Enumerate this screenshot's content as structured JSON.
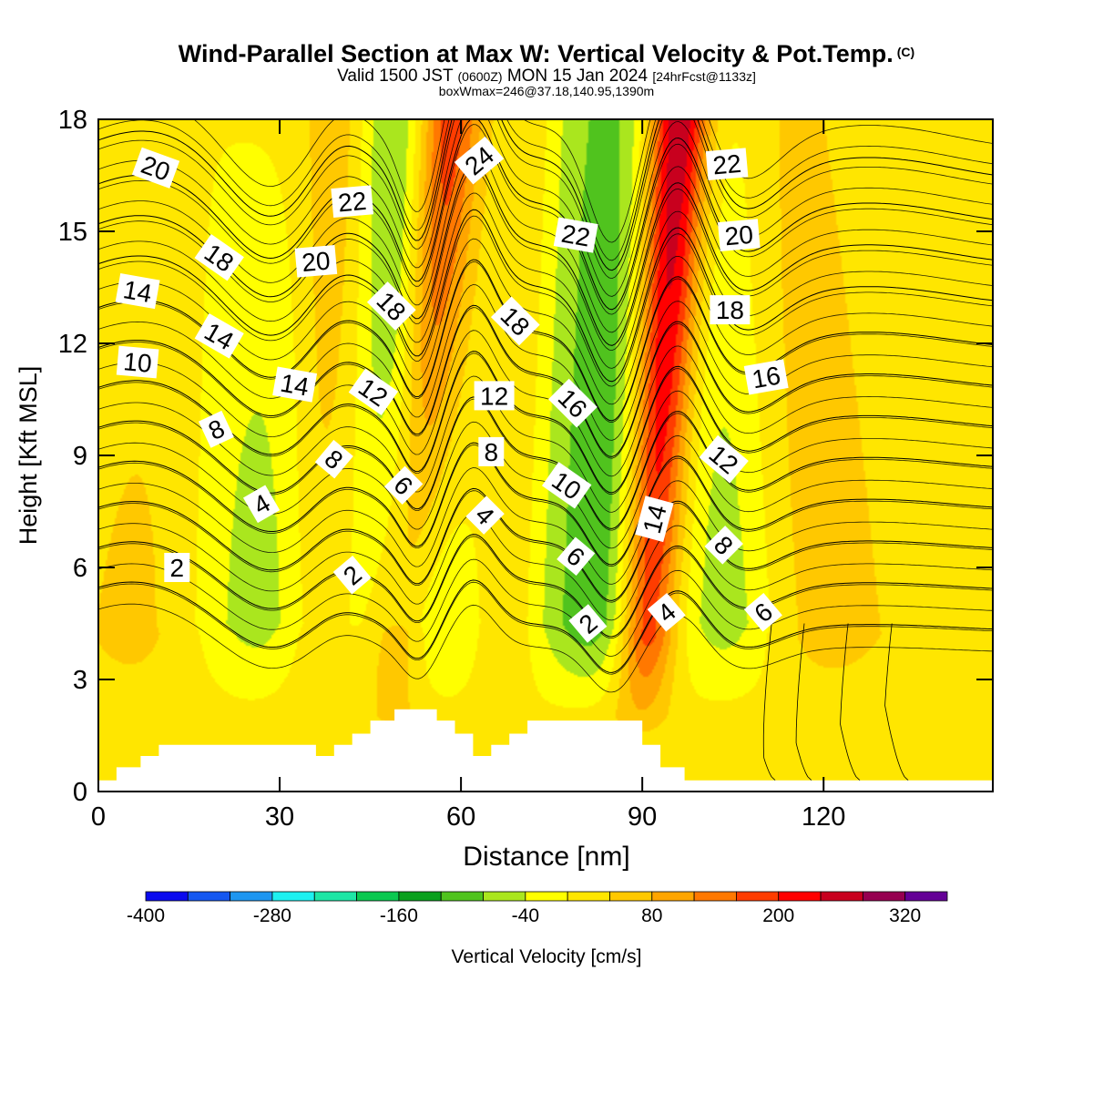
{
  "header": {
    "title": "Wind-Parallel Section at Max W: Vertical Velocity & Pot.Temp.",
    "title_mark": "(C)",
    "valid_a": "Valid 1500 JST",
    "valid_b": "(0600Z)",
    "valid_c": "MON 15 Jan 2024",
    "valid_d": "[24hrFcst@1133z]",
    "box_info": "boxWmax=246@37.18,140.95,1390m"
  },
  "chart_data": {
    "type": "heatmap",
    "title": "Wind-Parallel Section at Max W: Vertical Velocity & Pot.Temp.",
    "xlabel": "Distance [nm]",
    "ylabel": "Height [Kft MSL]",
    "xlim": [
      0,
      148
    ],
    "ylim": [
      0,
      18
    ],
    "x_ticks": [
      0,
      30,
      60,
      90,
      120
    ],
    "y_ticks": [
      0,
      3,
      6,
      9,
      12,
      15,
      18
    ],
    "colorbar": {
      "label": "Vertical Velocity [cm/s]",
      "tick_labels": [
        "-400",
        "-280",
        "-160",
        "-40",
        "80",
        "200",
        "320"
      ],
      "tick_values": [
        -400,
        -280,
        -160,
        -40,
        80,
        200,
        320
      ],
      "range": [
        -400,
        360
      ],
      "colors": [
        "#0a0aee",
        "#1457f0",
        "#1e96f0",
        "#1ef0f0",
        "#1ee6a5",
        "#0ac850",
        "#0aa01e",
        "#50c31e",
        "#aae61e",
        "#ffff00",
        "#ffe600",
        "#ffc800",
        "#ffa500",
        "#ff7800",
        "#ff3c00",
        "#ff0000",
        "#c8001e",
        "#960050",
        "#640096"
      ]
    },
    "terrain": [
      [
        0,
        0.3
      ],
      [
        3,
        0.3
      ],
      [
        3,
        0.65
      ],
      [
        7,
        0.65
      ],
      [
        7,
        0.95
      ],
      [
        10,
        0.95
      ],
      [
        10,
        1.25
      ],
      [
        36,
        1.25
      ],
      [
        36,
        0.95
      ],
      [
        39,
        0.95
      ],
      [
        39,
        1.25
      ],
      [
        42,
        1.25
      ],
      [
        42,
        1.55
      ],
      [
        45,
        1.55
      ],
      [
        45,
        1.9
      ],
      [
        49,
        1.9
      ],
      [
        49,
        2.2
      ],
      [
        56,
        2.2
      ],
      [
        56,
        1.9
      ],
      [
        59,
        1.9
      ],
      [
        59,
        1.55
      ],
      [
        62,
        1.55
      ],
      [
        62,
        0.95
      ],
      [
        65,
        0.95
      ],
      [
        65,
        1.25
      ],
      [
        68,
        1.25
      ],
      [
        68,
        1.55
      ],
      [
        71,
        1.55
      ],
      [
        71,
        1.9
      ],
      [
        90,
        1.9
      ],
      [
        90,
        1.25
      ],
      [
        93,
        1.25
      ],
      [
        93,
        0.65
      ],
      [
        97,
        0.65
      ],
      [
        97,
        0.3
      ],
      [
        148,
        0.3
      ]
    ],
    "updrafts": [
      {
        "x_base": 48,
        "x_top": 58,
        "width": 5.5,
        "w_max": 190
      },
      {
        "x_base": 89,
        "x_top": 96,
        "width": 5,
        "w_max": 300
      },
      {
        "x_base": 5,
        "x_top": 20,
        "width": 14,
        "w_max": 60
      },
      {
        "x_base": 34,
        "x_top": 40,
        "width": 6,
        "w_max": 70
      },
      {
        "x_base": 68,
        "x_top": 72,
        "width": 4,
        "w_max": 40
      },
      {
        "x_base": 123,
        "x_top": 108,
        "width": 16,
        "w_max": 55
      }
    ],
    "downdrafts": [
      {
        "x_base": 53,
        "x_top": 49,
        "width": 7,
        "w_min": -140
      },
      {
        "x_base": 83,
        "x_top": 85,
        "width": 11,
        "w_min": -140
      },
      {
        "x_base": 29,
        "x_top": 20,
        "width": 14,
        "w_min": -90
      },
      {
        "x_base": 105,
        "x_top": 104,
        "width": 8,
        "w_min": -90
      }
    ],
    "theta_contours": [
      {
        "label": "2",
        "base_height": 4.4
      },
      {
        "label": "4",
        "base_height": 5.5
      },
      {
        "label": "6",
        "base_height": 6.6
      },
      {
        "label": "8",
        "base_height": 7.7
      },
      {
        "label": "10",
        "base_height": 8.8
      },
      {
        "label": "12",
        "base_height": 9.9
      },
      {
        "label": "14",
        "base_height": 11.0
      },
      {
        "label": "16",
        "base_height": 12.1
      },
      {
        "label": "18",
        "base_height": 13.3
      },
      {
        "label": "20",
        "base_height": 14.4
      },
      {
        "label": "22",
        "base_height": 15.5
      },
      {
        "label": "24",
        "base_height": 16.7
      }
    ],
    "contour_labels": [
      {
        "text": "20",
        "x": 9.5,
        "y": 16.7,
        "angle": 20
      },
      {
        "text": "22",
        "x": 42,
        "y": 15.8,
        "angle": -5
      },
      {
        "text": "24",
        "x": 63,
        "y": 16.9,
        "angle": -40
      },
      {
        "text": "22",
        "x": 79,
        "y": 14.9,
        "angle": 10
      },
      {
        "text": "22",
        "x": 104,
        "y": 16.8,
        "angle": -5
      },
      {
        "text": "20",
        "x": 106,
        "y": 14.9,
        "angle": -5
      },
      {
        "text": "18",
        "x": 20,
        "y": 14.3,
        "angle": 35
      },
      {
        "text": "20",
        "x": 36,
        "y": 14.2,
        "angle": -5
      },
      {
        "text": "14",
        "x": 6.5,
        "y": 13.4,
        "angle": 10
      },
      {
        "text": "14",
        "x": 20,
        "y": 12.2,
        "angle": 30
      },
      {
        "text": "18",
        "x": 48.5,
        "y": 13.0,
        "angle": 45
      },
      {
        "text": "18",
        "x": 69,
        "y": 12.6,
        "angle": 45
      },
      {
        "text": "18",
        "x": 104.5,
        "y": 12.9,
        "angle": 0
      },
      {
        "text": "10",
        "x": 6.5,
        "y": 11.5,
        "angle": 5
      },
      {
        "text": "14",
        "x": 32.5,
        "y": 10.9,
        "angle": 10
      },
      {
        "text": "12",
        "x": 45.5,
        "y": 10.7,
        "angle": 35
      },
      {
        "text": "12",
        "x": 65.5,
        "y": 10.6,
        "angle": 0
      },
      {
        "text": "16",
        "x": 78.5,
        "y": 10.4,
        "angle": 45
      },
      {
        "text": "16",
        "x": 110.5,
        "y": 11.1,
        "angle": -10
      },
      {
        "text": "8",
        "x": 19.5,
        "y": 9.7,
        "angle": -25
      },
      {
        "text": "8",
        "x": 39,
        "y": 8.9,
        "angle": 40
      },
      {
        "text": "8",
        "x": 65,
        "y": 9.1,
        "angle": 0
      },
      {
        "text": "12",
        "x": 103.5,
        "y": 8.9,
        "angle": 40
      },
      {
        "text": "6",
        "x": 50.5,
        "y": 8.2,
        "angle": 45
      },
      {
        "text": "10",
        "x": 77.5,
        "y": 8.2,
        "angle": 35
      },
      {
        "text": "4",
        "x": 27,
        "y": 7.7,
        "angle": -30
      },
      {
        "text": "4",
        "x": 64,
        "y": 7.4,
        "angle": 45
      },
      {
        "text": "14",
        "x": 92,
        "y": 7.3,
        "angle": -75
      },
      {
        "text": "8",
        "x": 103.5,
        "y": 6.6,
        "angle": 45
      },
      {
        "text": "6",
        "x": 79,
        "y": 6.3,
        "angle": 40
      },
      {
        "text": "2",
        "x": 13,
        "y": 6.0,
        "angle": 0
      },
      {
        "text": "2",
        "x": 42,
        "y": 5.8,
        "angle": -40
      },
      {
        "text": "2",
        "x": 81,
        "y": 4.5,
        "angle": -40
      },
      {
        "text": "4",
        "x": 94,
        "y": 4.8,
        "angle": -40
      },
      {
        "text": "6",
        "x": 110,
        "y": 4.8,
        "angle": -40
      }
    ]
  }
}
